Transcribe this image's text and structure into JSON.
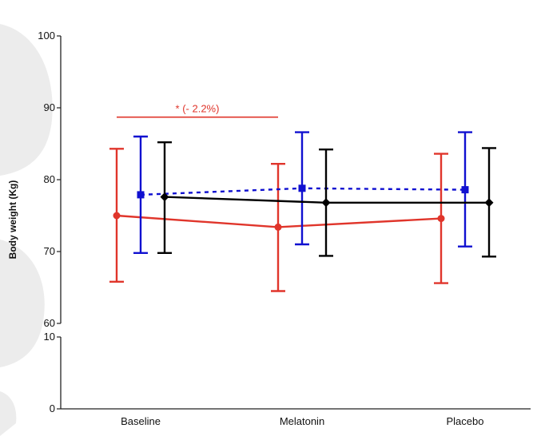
{
  "chart_data": {
    "type": "line",
    "ylabel": "Body weight (Kg)",
    "xlabel": "",
    "categories": [
      "Baseline",
      "Melatonin",
      "Placebo"
    ],
    "y_axis_upper": {
      "range": [
        60,
        100
      ],
      "ticks": [
        60,
        70,
        80,
        90,
        100
      ]
    },
    "y_axis_lower": {
      "range": [
        0,
        10
      ],
      "ticks": [
        0,
        10
      ]
    },
    "axis_break": true,
    "grid": false,
    "legend": "none",
    "series": [
      {
        "color": "#e0352b",
        "line_style": "solid",
        "marker": "circle",
        "values": [
          75.0,
          73.4,
          74.6
        ],
        "err_low": [
          65.8,
          64.5,
          65.6
        ],
        "err_high": [
          84.3,
          82.2,
          83.6
        ]
      },
      {
        "color": "#1010d0",
        "line_style": "dotted",
        "marker": "square",
        "values": [
          77.9,
          78.8,
          78.6
        ],
        "err_low": [
          69.8,
          71.0,
          70.7
        ],
        "err_high": [
          86.0,
          86.6,
          86.6
        ]
      },
      {
        "color": "#000000",
        "line_style": "solid",
        "marker": "diamond",
        "values": [
          77.6,
          76.8,
          76.8
        ],
        "err_low": [
          69.8,
          69.4,
          69.3
        ],
        "err_high": [
          85.2,
          84.2,
          84.4
        ]
      }
    ],
    "annotations": [
      {
        "text": "* (- 2.2%)",
        "from": "Baseline",
        "to": "Melatonin",
        "y": 88.7,
        "color": "#e0352b"
      }
    ]
  }
}
